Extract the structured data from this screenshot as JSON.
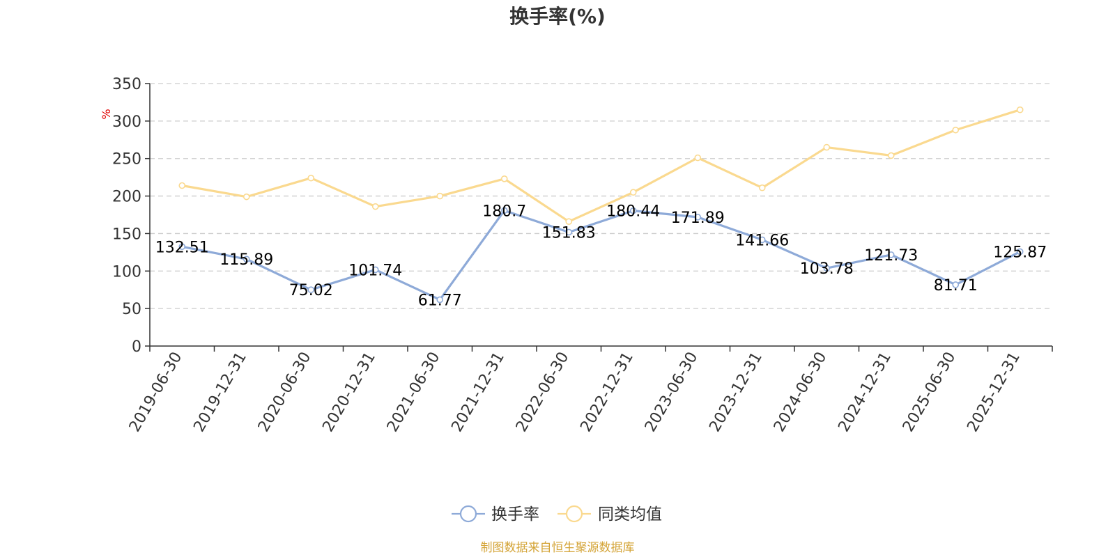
{
  "chart_data": {
    "type": "line",
    "title": "换手率(%)",
    "ylabel": "%",
    "ylim": [
      0,
      350
    ],
    "yticks": [
      0,
      50,
      100,
      150,
      200,
      250,
      300,
      350
    ],
    "ytick_labels": [
      "0",
      "50",
      "100",
      "150",
      "200",
      "250",
      "300",
      "350"
    ],
    "grid": true,
    "legend_position": "bottom-center",
    "categories": [
      "2019-06-30",
      "2019-12-31",
      "2020-06-30",
      "2020-12-31",
      "2021-06-30",
      "2021-12-31",
      "2022-06-30",
      "2022-12-31",
      "2023-06-30",
      "2023-12-31",
      "2024-06-30",
      "2024-12-31",
      "2025-06-30",
      "2025-12-31"
    ],
    "series": [
      {
        "name": "换手率",
        "color": "#8eaad8",
        "values": [
          132.51,
          115.89,
          75.02,
          101.74,
          61.77,
          180.7,
          151.83,
          180.44,
          171.89,
          141.66,
          103.78,
          121.73,
          81.71,
          125.87
        ],
        "labels": [
          "132.51",
          "115.89",
          "75.02",
          "101.74",
          "61.77",
          "180.7",
          "151.83",
          "180.44",
          "171.89",
          "141.66",
          "103.78",
          "121.73",
          "81.71",
          "125.87"
        ]
      },
      {
        "name": "同类均值",
        "color": "#fad98f",
        "values": [
          214,
          199,
          224,
          186,
          200,
          223,
          166,
          205,
          251,
          211,
          265,
          254,
          288,
          315
        ]
      }
    ]
  },
  "source_text": "制图数据来自恒生聚源数据库",
  "colors": {
    "axis": "#333333",
    "grid": "#cccccc",
    "unit": "#e00000",
    "source": "#d4a437"
  }
}
